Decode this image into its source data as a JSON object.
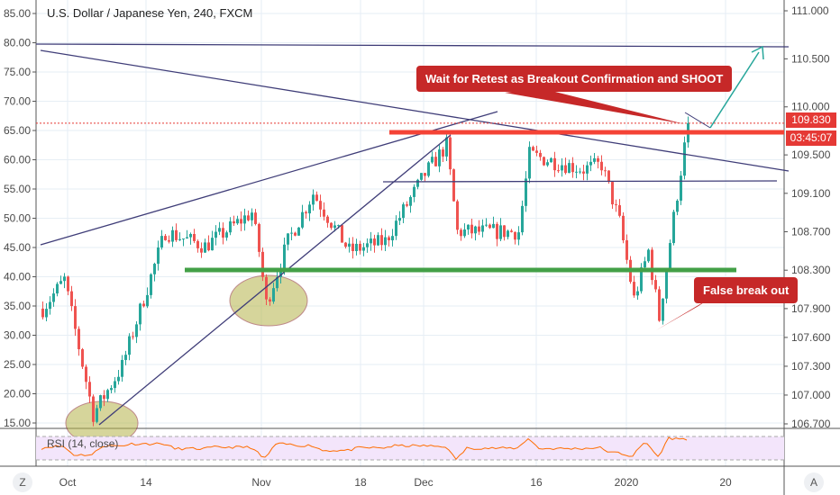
{
  "header": {
    "title": "U.S. Dollar / Japanese Yen, 240, FXCM"
  },
  "annotations": {
    "retest": "Wait for Retest as Breakout Confirmation and SHOOT",
    "false_break": "False break out"
  },
  "price_tags": {
    "last": "109.830",
    "countdown": "03:45:07"
  },
  "rsi": {
    "label": "RSI (14, close)"
  },
  "buttons": {
    "left": "Z",
    "right": "A"
  },
  "colors": {
    "up": "#26a69a",
    "down": "#ef5350",
    "rsi": "#ff6d00"
  },
  "chart_data": {
    "type": "candlestick",
    "title": "U.S. Dollar / Japanese Yen, 240, FXCM",
    "right_axis": {
      "ticks": [
        "111.000",
        "110.500",
        "110.000",
        "109.500",
        "109.100",
        "108.700",
        "108.300",
        "107.900",
        "107.600",
        "107.300",
        "107.000",
        "106.700"
      ],
      "range": [
        106.7,
        111.0
      ]
    },
    "left_axis": {
      "ticks": [
        "85.00",
        "80.00",
        "75.00",
        "70.00",
        "65.00",
        "60.00",
        "55.00",
        "50.00",
        "45.00",
        "40.00",
        "35.00",
        "30.00",
        "25.00",
        "20.00",
        "15.00"
      ],
      "range": [
        15,
        85
      ]
    },
    "x_ticks": [
      "Oct",
      "14",
      "Nov",
      "18",
      "Dec",
      "16",
      "2020",
      "20"
    ],
    "price_path": [
      [
        0,
        107.9
      ],
      [
        6,
        108.2
      ],
      [
        14,
        106.8
      ],
      [
        22,
        107.3
      ],
      [
        34,
        108.7
      ],
      [
        45,
        108.55
      ],
      [
        58,
        108.9
      ],
      [
        60,
        108.5
      ],
      [
        62,
        107.95
      ],
      [
        68,
        108.6
      ],
      [
        75,
        109.1
      ],
      [
        85,
        108.5
      ],
      [
        95,
        108.6
      ],
      [
        106,
        109.3
      ],
      [
        112,
        109.6
      ],
      [
        115,
        108.7
      ],
      [
        132,
        108.7
      ],
      [
        135,
        109.5
      ],
      [
        150,
        109.35
      ],
      [
        155,
        109.4
      ],
      [
        160,
        108.8
      ],
      [
        164,
        108.0
      ],
      [
        168,
        108.5
      ],
      [
        171,
        107.8
      ],
      [
        174,
        108.6
      ],
      [
        179,
        109.83
      ]
    ],
    "last_price": 109.83
  }
}
